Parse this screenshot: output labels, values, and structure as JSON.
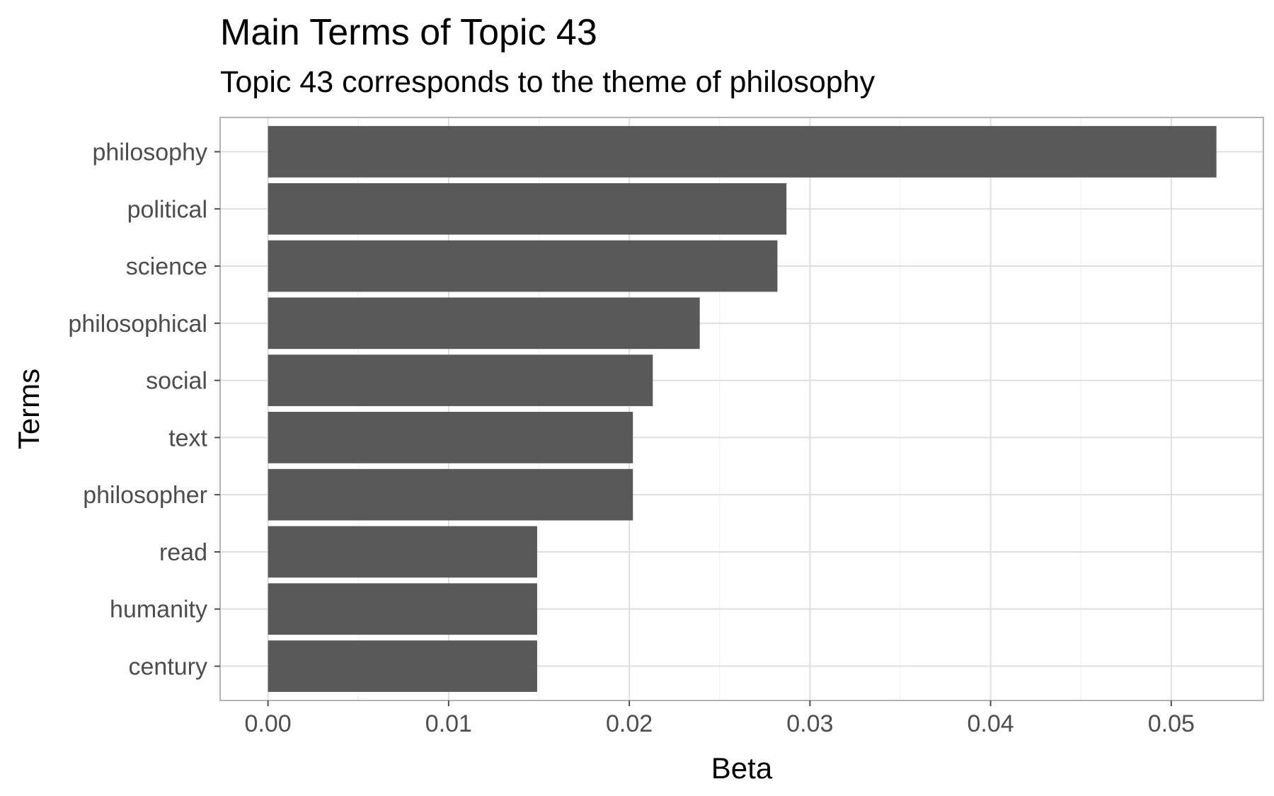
{
  "chart_data": {
    "type": "bar",
    "orientation": "horizontal",
    "title": "Main Terms of Topic 43",
    "subtitle": "Topic 43 corresponds to the theme of philosophy",
    "xlabel": "Beta",
    "ylabel": "Terms",
    "categories": [
      "philosophy",
      "political",
      "science",
      "philosophical",
      "social",
      "text",
      "philosopher",
      "read",
      "humanity",
      "century"
    ],
    "values": [
      0.0525,
      0.0287,
      0.0282,
      0.0239,
      0.0213,
      0.0202,
      0.0202,
      0.0149,
      0.0149,
      0.0149
    ],
    "x_ticks": [
      0.0,
      0.01,
      0.02,
      0.03,
      0.04,
      0.05
    ],
    "x_tick_labels": [
      "0.00",
      "0.01",
      "0.02",
      "0.03",
      "0.04",
      "0.05"
    ],
    "xlim": [
      -0.00265,
      0.0551
    ],
    "grid": true,
    "legend": "none",
    "colors": {
      "bar": "#595959",
      "grid_major": "#dedede",
      "grid_minor": "#efefef",
      "panel_border": "#b3b3b3",
      "tick_text": "#4d4d4d"
    }
  }
}
